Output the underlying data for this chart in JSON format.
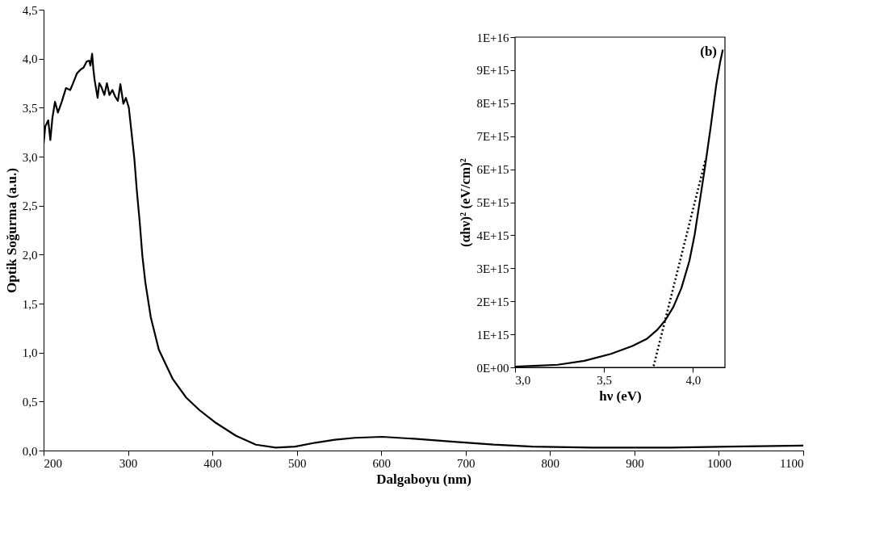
{
  "chart_data": [
    {
      "type": "line",
      "xlabel": "Dalgaboyu (nm)",
      "ylabel": "Optik Soğurma (a.u.)",
      "xlim": [
        200,
        1100
      ],
      "xticks": [
        200,
        300,
        400,
        500,
        600,
        700,
        800,
        900,
        1000,
        1100
      ],
      "ylim": [
        0,
        4.5
      ],
      "yticks": [
        {
          "value": 0,
          "label": "0,0"
        },
        {
          "value": 0.5,
          "label": "0,5"
        },
        {
          "value": 1,
          "label": "1,0"
        },
        {
          "value": 1.5,
          "label": "1,5"
        },
        {
          "value": 2,
          "label": "2,0"
        },
        {
          "value": 2.5,
          "label": "2,5"
        },
        {
          "value": 3,
          "label": "3,0"
        },
        {
          "value": 3.5,
          "label": "3,5"
        },
        {
          "value": 4,
          "label": "4,0"
        },
        {
          "value": 4.5,
          "label": "4,5"
        }
      ],
      "grid": false,
      "legend": false,
      "line_style": "solid",
      "series": [
        {
          "type": "line",
          "color": "#000000",
          "x": [
            200,
            202,
            205.5,
            208,
            210.5,
            213.5,
            217,
            221.5,
            226.5,
            231.5,
            234.5,
            239.5,
            244,
            247.5,
            251,
            254,
            255.5,
            257.5,
            259,
            260.5,
            264,
            266,
            268.5,
            272,
            275,
            278,
            281.5,
            285,
            288,
            291,
            294.5,
            297.5,
            301,
            304,
            307.5,
            310.5,
            314,
            317,
            320.5,
            327,
            336.5,
            353,
            369,
            385,
            404.5,
            428,
            451.5,
            475,
            498,
            522,
            545,
            569,
            601,
            639,
            686,
            733,
            779,
            850,
            896,
            943,
            1013,
            1100
          ],
          "values": [
            3.13,
            3.31,
            3.37,
            3.17,
            3.4,
            3.56,
            3.45,
            3.56,
            3.7,
            3.68,
            3.74,
            3.85,
            3.89,
            3.91,
            3.97,
            3.98,
            3.93,
            4.05,
            3.89,
            3.78,
            3.6,
            3.75,
            3.71,
            3.63,
            3.75,
            3.63,
            3.68,
            3.61,
            3.57,
            3.74,
            3.54,
            3.6,
            3.5,
            3.26,
            2.98,
            2.65,
            2.32,
            1.99,
            1.72,
            1.36,
            1.03,
            0.73,
            0.54,
            0.41,
            0.28,
            0.15,
            0.06,
            0.03,
            0.04,
            0.08,
            0.11,
            0.13,
            0.14,
            0.12,
            0.09,
            0.06,
            0.04,
            0.03,
            0.03,
            0.03,
            0.04,
            0.05
          ]
        }
      ]
    },
    {
      "type": "line",
      "xlabel": "hν (eV)",
      "ylabel": "(αhν)² (eV/cm)²",
      "annotations": [
        "(b)"
      ],
      "xlim": [
        3.0,
        4.18
      ],
      "xticks": [
        {
          "value": 3.0,
          "label": "3,0"
        },
        {
          "value": 3.5,
          "label": "3,5"
        },
        {
          "value": 4.0,
          "label": "4,0"
        }
      ],
      "ylim": [
        0,
        1e+16
      ],
      "yticks": [
        {
          "value": 0,
          "label": "0E+00"
        },
        {
          "value": 1000000000000000.0,
          "label": "1E+15"
        },
        {
          "value": 2000000000000000.0,
          "label": "2E+15"
        },
        {
          "value": 3000000000000000.0,
          "label": "3E+15"
        },
        {
          "value": 4000000000000000.0,
          "label": "4E+15"
        },
        {
          "value": 5000000000000000.0,
          "label": "5E+15"
        },
        {
          "value": 6000000000000000.0,
          "label": "6E+15"
        },
        {
          "value": 7000000000000000.0,
          "label": "7E+15"
        },
        {
          "value": 8000000000000000.0,
          "label": "8E+15"
        },
        {
          "value": 9000000000000000.0,
          "label": "9E+15"
        },
        {
          "value": 1e+16,
          "label": "1E+16"
        }
      ],
      "grid": false,
      "legend": false,
      "series": [
        {
          "type": "line",
          "color": "#000000",
          "line_style": "solid",
          "x": [
            3.0,
            3.24,
            3.39,
            3.54,
            3.66,
            3.74,
            3.8,
            3.845,
            3.89,
            3.935,
            3.98,
            4.01,
            4.04,
            4.07,
            4.1,
            4.13,
            4.153,
            4.168
          ],
          "values": [
            20000000000000.0,
            80000000000000.0,
            200000000000000.0,
            410000000000000.0,
            650000000000000.0,
            860000000000000.0,
            1140000000000000.0,
            1430000000000000.0,
            1830000000000000.0,
            2400000000000000.0,
            3220000000000000.0,
            4030000000000000.0,
            5090000000000000.0,
            6150000000000000.0,
            7290000000000000.0,
            8520000000000000.0,
            9250000000000000.0,
            9620000000000000.0
          ]
        },
        {
          "type": "line",
          "color": "#000000",
          "line_style": "dotted",
          "x": [
            3.779,
            4.071
          ],
          "values": [
            40000000000000.0,
            6300000000000000.0
          ]
        }
      ]
    }
  ]
}
